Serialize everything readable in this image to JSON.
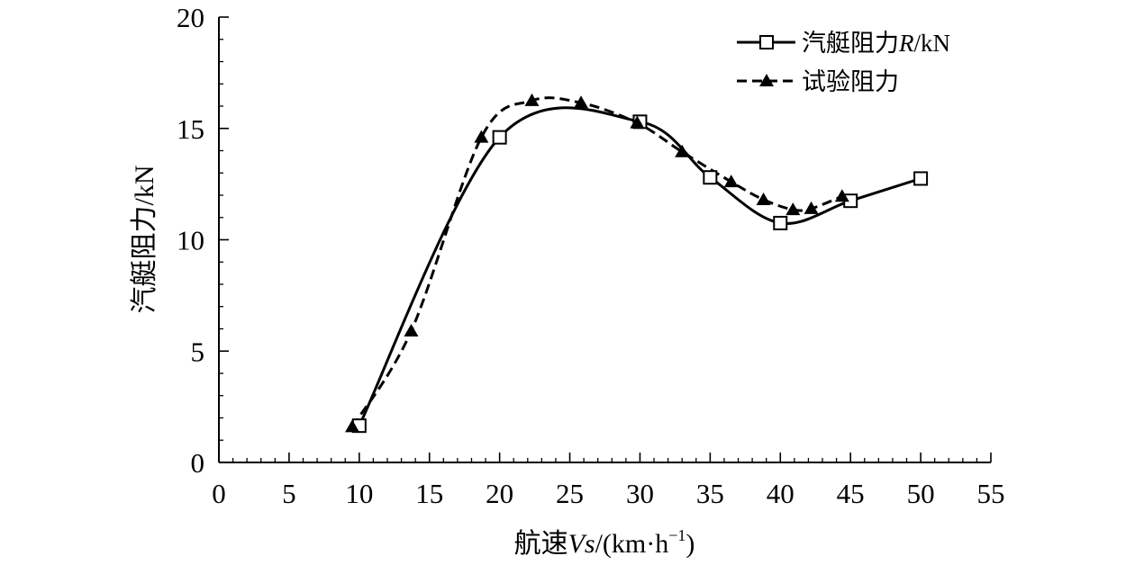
{
  "chart_data": {
    "type": "line",
    "title": "",
    "xlabel": "航速Vs/(km·h⁻¹)",
    "xlabel_parts": {
      "prefix": "航速",
      "var": "Vs",
      "unit_open": "/(km·h",
      "sup": "−1",
      "unit_close": ")"
    },
    "ylabel": "汽艇阻力/kN",
    "xlim": [
      0,
      55
    ],
    "ylim": [
      0,
      20
    ],
    "xticks": [
      0,
      5,
      10,
      15,
      20,
      25,
      30,
      35,
      40,
      45,
      50,
      55
    ],
    "yticks": [
      0,
      5,
      10,
      15,
      20
    ],
    "grid": false,
    "legend_position": "top-right",
    "series": [
      {
        "name": "汽艇阻力R/kN",
        "legend_parts": {
          "prefix": "汽艇阻力",
          "var": "R",
          "suffix": "/kN"
        },
        "line_style": "solid",
        "marker": "square",
        "x": [
          10,
          20,
          30,
          35,
          40,
          45,
          50
        ],
        "y": [
          1.65,
          14.6,
          15.3,
          12.8,
          10.75,
          11.75,
          12.75
        ]
      },
      {
        "name": "试验阻力",
        "line_style": "dashed",
        "marker": "triangle",
        "x": [
          9.5,
          13.7,
          18.7,
          22.3,
          25.8,
          29.8,
          33,
          36.5,
          38.8,
          40.9,
          42.2,
          44.4
        ],
        "y": [
          1.6,
          5.9,
          14.6,
          16.25,
          16.15,
          15.25,
          13.95,
          12.6,
          11.8,
          11.35,
          11.4,
          11.95
        ]
      }
    ]
  }
}
